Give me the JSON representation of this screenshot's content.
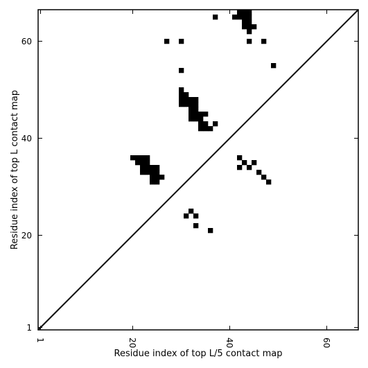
{
  "chart_data": {
    "type": "heatmap",
    "subtype": "contact-map",
    "xlabel": "Residue index of top L/5 contact map",
    "ylabel": "Residue index of top L contact map",
    "xlim": [
      0.5,
      66.5
    ],
    "ylim": [
      0.5,
      66.5
    ],
    "x_ticks": [
      1,
      20,
      40,
      60
    ],
    "y_ticks": [
      1,
      20,
      40,
      60
    ],
    "tick_labels_x": [
      "1",
      "20",
      "40",
      "60"
    ],
    "tick_labels_y": [
      "1",
      "20",
      "40",
      "60"
    ],
    "x_tick_rotation": "vertical",
    "diagonal_line": true,
    "grid": false,
    "colors": {
      "cell": "#000000",
      "background": "#ffffff",
      "diagonal": "#000000"
    },
    "contacts_top_L": [
      [
        20,
        36
      ],
      [
        21,
        36
      ],
      [
        22,
        36
      ],
      [
        23,
        36
      ],
      [
        21,
        35
      ],
      [
        22,
        35
      ],
      [
        23,
        35
      ],
      [
        22,
        34
      ],
      [
        23,
        34
      ],
      [
        24,
        34
      ],
      [
        25,
        34
      ],
      [
        22,
        33
      ],
      [
        23,
        33
      ],
      [
        24,
        33
      ],
      [
        25,
        33
      ],
      [
        24,
        32
      ],
      [
        25,
        32
      ],
      [
        26,
        32
      ],
      [
        24,
        31
      ],
      [
        25,
        31
      ],
      [
        27,
        60
      ],
      [
        30,
        60
      ],
      [
        30,
        54
      ],
      [
        30,
        50
      ],
      [
        30,
        49
      ],
      [
        31,
        49
      ],
      [
        30,
        48
      ],
      [
        31,
        48
      ],
      [
        32,
        48
      ],
      [
        33,
        48
      ],
      [
        30,
        47
      ],
      [
        31,
        47
      ],
      [
        32,
        47
      ],
      [
        33,
        47
      ],
      [
        32,
        46
      ],
      [
        33,
        46
      ],
      [
        32,
        45
      ],
      [
        33,
        45
      ],
      [
        34,
        45
      ],
      [
        35,
        45
      ],
      [
        32,
        44
      ],
      [
        33,
        44
      ],
      [
        34,
        44
      ],
      [
        34,
        43
      ],
      [
        35,
        43
      ],
      [
        37,
        43
      ],
      [
        34,
        42
      ],
      [
        35,
        42
      ],
      [
        36,
        42
      ],
      [
        37,
        65
      ],
      [
        41,
        65
      ],
      [
        42,
        65
      ],
      [
        43,
        65
      ],
      [
        44,
        65
      ],
      [
        42,
        66
      ],
      [
        43,
        66
      ],
      [
        44,
        66
      ],
      [
        43,
        64
      ],
      [
        44,
        64
      ],
      [
        43,
        63
      ],
      [
        44,
        63
      ],
      [
        45,
        63
      ],
      [
        44,
        62
      ],
      [
        44,
        60
      ],
      [
        47,
        60
      ],
      [
        49,
        55
      ]
    ],
    "contacts_top_L5": [
      [
        31,
        24
      ],
      [
        32,
        25
      ],
      [
        33,
        24
      ],
      [
        33,
        22
      ],
      [
        36,
        21
      ],
      [
        42,
        36
      ],
      [
        42,
        34
      ],
      [
        43,
        35
      ],
      [
        44,
        34
      ],
      [
        45,
        35
      ],
      [
        46,
        33
      ],
      [
        47,
        32
      ],
      [
        48,
        31
      ]
    ]
  }
}
